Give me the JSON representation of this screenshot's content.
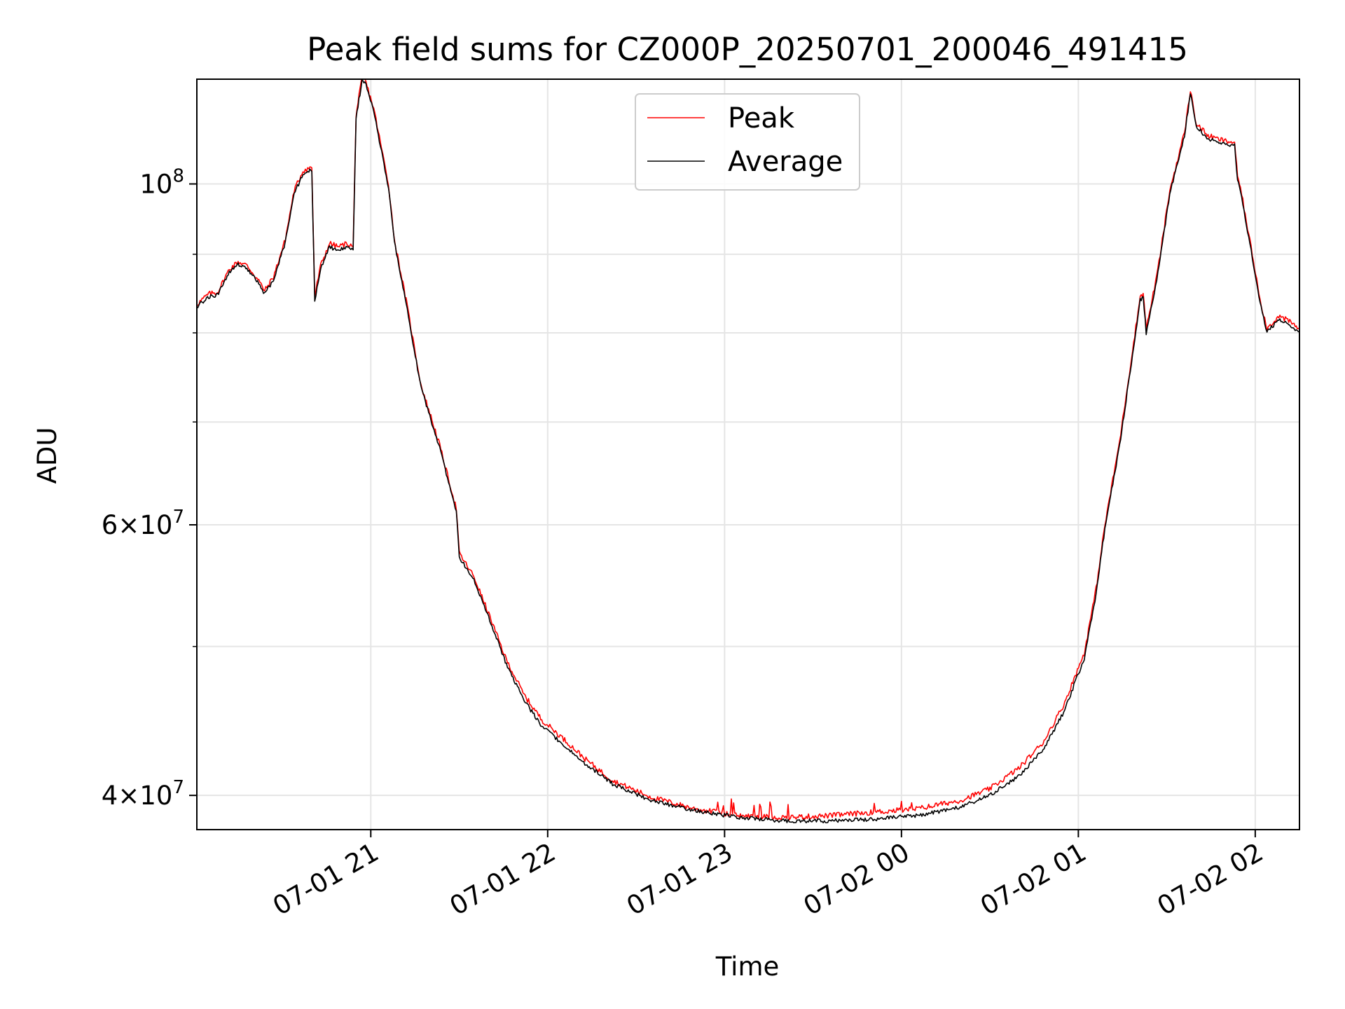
{
  "chart_data": {
    "type": "line",
    "title": "Peak field sums for CZ000P_20250701_200046_491415",
    "xlabel": "Time",
    "ylabel": "ADU",
    "x_range": [
      "2025-07-01 20:01",
      "2025-07-02 02:15"
    ],
    "ylim": [
      38000000,
      117000000
    ],
    "yscale": "log",
    "grid": true,
    "legend_position": "upper center",
    "x_ticks": [
      {
        "value": "2025-07-01 21:00",
        "label": "07-01 21"
      },
      {
        "value": "2025-07-01 22:00",
        "label": "07-01 22"
      },
      {
        "value": "2025-07-01 23:00",
        "label": "07-01 23"
      },
      {
        "value": "2025-07-02 00:00",
        "label": "07-02 00"
      },
      {
        "value": "2025-07-02 01:00",
        "label": "07-02 01"
      },
      {
        "value": "2025-07-02 02:00",
        "label": "07-02 02"
      }
    ],
    "y_major_ticks": [
      {
        "value": 40000000,
        "label_mantissa": "4",
        "label_exponent": "7"
      },
      {
        "value": 60000000,
        "label_mantissa": "6",
        "label_exponent": "7"
      },
      {
        "value": 100000000,
        "label_mantissa": "",
        "label_exponent": "8"
      }
    ],
    "y_minor_grid": [
      50000000,
      70000000,
      80000000,
      90000000
    ],
    "series": [
      {
        "name": "Peak",
        "color": "#ff0000",
        "noise": 0.004,
        "points": [
          [
            "2025-07-01 20:01",
            83500000
          ],
          [
            "2025-07-01 20:05",
            84800000
          ],
          [
            "2025-07-01 20:08",
            85000000
          ],
          [
            "2025-07-01 20:12",
            88000000
          ],
          [
            "2025-07-01 20:15",
            89000000
          ],
          [
            "2025-07-01 20:18",
            88500000
          ],
          [
            "2025-07-01 20:22",
            86500000
          ],
          [
            "2025-07-01 20:24",
            85200000
          ],
          [
            "2025-07-01 20:27",
            87000000
          ],
          [
            "2025-07-01 20:31",
            92000000
          ],
          [
            "2025-07-01 20:34",
            99000000
          ],
          [
            "2025-07-01 20:37",
            102000000
          ],
          [
            "2025-07-01 20:39",
            102400000
          ],
          [
            "2025-07-01 20:40",
            102500000
          ],
          [
            "2025-07-01 20:41",
            84500000
          ],
          [
            "2025-07-01 20:43",
            88500000
          ],
          [
            "2025-07-01 20:46",
            91500000
          ],
          [
            "2025-07-01 20:49",
            91000000
          ],
          [
            "2025-07-01 20:52",
            91500000
          ],
          [
            "2025-07-01 20:54",
            91000000
          ],
          [
            "2025-07-01 20:55",
            111000000
          ],
          [
            "2025-07-01 20:56",
            114000000
          ],
          [
            "2025-07-01 20:57",
            117000000
          ],
          [
            "2025-07-01 20:58",
            117000000
          ],
          [
            "2025-07-01 21:01",
            112000000
          ],
          [
            "2025-07-01 21:06",
            100000000
          ],
          [
            "2025-07-01 21:08",
            92000000
          ],
          [
            "2025-07-01 21:12",
            84000000
          ],
          [
            "2025-07-01 21:17",
            74000000
          ],
          [
            "2025-07-01 21:23",
            68000000
          ],
          [
            "2025-07-01 21:29",
            61500000
          ],
          [
            "2025-07-01 21:30",
            57500000
          ],
          [
            "2025-07-01 21:35",
            55500000
          ],
          [
            "2025-07-01 21:40",
            52500000
          ],
          [
            "2025-07-01 21:46",
            49000000
          ],
          [
            "2025-07-01 21:52",
            46500000
          ],
          [
            "2025-07-01 21:58",
            44800000
          ],
          [
            "2025-07-01 22:05",
            43600000
          ],
          [
            "2025-07-01 22:13",
            42200000
          ],
          [
            "2025-07-01 22:22",
            40900000
          ],
          [
            "2025-07-01 22:35",
            39900000
          ],
          [
            "2025-07-01 22:50",
            39200000
          ],
          [
            "2025-07-01 23:05",
            38800000
          ],
          [
            "2025-07-01 23:20",
            38700000
          ],
          [
            "2025-07-01 23:35",
            38800000
          ],
          [
            "2025-07-01 23:50",
            39000000
          ],
          [
            "2025-07-02 00:05",
            39200000
          ],
          [
            "2025-07-02 00:20",
            39700000
          ],
          [
            "2025-07-02 00:30",
            40400000
          ],
          [
            "2025-07-02 00:40",
            41700000
          ],
          [
            "2025-07-02 00:48",
            43300000
          ],
          [
            "2025-07-02 00:55",
            45800000
          ],
          [
            "2025-07-02 01:02",
            49500000
          ],
          [
            "2025-07-02 01:06",
            54500000
          ],
          [
            "2025-07-02 01:09",
            60000000
          ],
          [
            "2025-07-02 01:14",
            68000000
          ],
          [
            "2025-07-02 01:18",
            77000000
          ],
          [
            "2025-07-02 01:21",
            84500000
          ],
          [
            "2025-07-02 01:22",
            85000000
          ],
          [
            "2025-07-02 01:23",
            80500000
          ],
          [
            "2025-07-02 01:25",
            84000000
          ],
          [
            "2025-07-02 01:27",
            88000000
          ],
          [
            "2025-07-02 01:31",
            99000000
          ],
          [
            "2025-07-02 01:36",
            108000000
          ],
          [
            "2025-07-02 01:38",
            115000000
          ],
          [
            "2025-07-02 01:40",
            109500000
          ],
          [
            "2025-07-02 01:44",
            107500000
          ],
          [
            "2025-07-02 01:47",
            107000000
          ],
          [
            "2025-07-02 01:51",
            106500000
          ],
          [
            "2025-07-02 01:53",
            106500000
          ],
          [
            "2025-07-02 01:54",
            101000000
          ],
          [
            "2025-07-02 01:55",
            99500000
          ],
          [
            "2025-07-02 01:57",
            94500000
          ],
          [
            "2025-07-02 01:59",
            90000000
          ],
          [
            "2025-07-02 02:02",
            83500000
          ],
          [
            "2025-07-02 02:04",
            80500000
          ],
          [
            "2025-07-02 02:08",
            82000000
          ],
          [
            "2025-07-02 02:11",
            81500000
          ],
          [
            "2025-07-02 02:15",
            80500000
          ]
        ]
      },
      {
        "name": "Average",
        "color": "#000000",
        "noise": 0.003,
        "points": [
          [
            "2025-07-01 20:01",
            83200000
          ],
          [
            "2025-07-01 20:05",
            84400000
          ],
          [
            "2025-07-01 20:08",
            84700000
          ],
          [
            "2025-07-01 20:12",
            87600000
          ],
          [
            "2025-07-01 20:15",
            88600000
          ],
          [
            "2025-07-01 20:18",
            88100000
          ],
          [
            "2025-07-01 20:22",
            86100000
          ],
          [
            "2025-07-01 20:24",
            84800000
          ],
          [
            "2025-07-01 20:27",
            86600000
          ],
          [
            "2025-07-01 20:31",
            91600000
          ],
          [
            "2025-07-01 20:34",
            98500000
          ],
          [
            "2025-07-01 20:37",
            101500000
          ],
          [
            "2025-07-01 20:39",
            102000000
          ],
          [
            "2025-07-01 20:40",
            102000000
          ],
          [
            "2025-07-01 20:41",
            84000000
          ],
          [
            "2025-07-01 20:43",
            88000000
          ],
          [
            "2025-07-01 20:46",
            91000000
          ],
          [
            "2025-07-01 20:49",
            90500000
          ],
          [
            "2025-07-01 20:52",
            91000000
          ],
          [
            "2025-07-01 20:54",
            90500000
          ],
          [
            "2025-07-01 20:55",
            110500000
          ],
          [
            "2025-07-01 20:56",
            113500000
          ],
          [
            "2025-07-01 20:57",
            116500000
          ],
          [
            "2025-07-01 20:58",
            116500000
          ],
          [
            "2025-07-01 21:01",
            111500000
          ],
          [
            "2025-07-01 21:06",
            99500000
          ],
          [
            "2025-07-01 21:08",
            91600000
          ],
          [
            "2025-07-01 21:12",
            83600000
          ],
          [
            "2025-07-01 21:17",
            73700000
          ],
          [
            "2025-07-01 21:23",
            67700000
          ],
          [
            "2025-07-01 21:29",
            61200000
          ],
          [
            "2025-07-01 21:30",
            57200000
          ],
          [
            "2025-07-01 21:35",
            55200000
          ],
          [
            "2025-07-01 21:40",
            52200000
          ],
          [
            "2025-07-01 21:46",
            48700000
          ],
          [
            "2025-07-01 21:52",
            46100000
          ],
          [
            "2025-07-01 21:58",
            44400000
          ],
          [
            "2025-07-01 22:05",
            43200000
          ],
          [
            "2025-07-01 22:13",
            41900000
          ],
          [
            "2025-07-01 22:22",
            40700000
          ],
          [
            "2025-07-01 22:35",
            39700000
          ],
          [
            "2025-07-01 22:50",
            39100000
          ],
          [
            "2025-07-01 23:05",
            38700000
          ],
          [
            "2025-07-01 23:20",
            38500000
          ],
          [
            "2025-07-01 23:35",
            38500000
          ],
          [
            "2025-07-01 23:50",
            38600000
          ],
          [
            "2025-07-02 00:05",
            38800000
          ],
          [
            "2025-07-02 00:20",
            39300000
          ],
          [
            "2025-07-02 00:30",
            40000000
          ],
          [
            "2025-07-02 00:40",
            41200000
          ],
          [
            "2025-07-02 00:48",
            42800000
          ],
          [
            "2025-07-02 00:55",
            45300000
          ],
          [
            "2025-07-02 01:02",
            49100000
          ],
          [
            "2025-07-02 01:06",
            54100000
          ],
          [
            "2025-07-02 01:09",
            59700000
          ],
          [
            "2025-07-02 01:14",
            67600000
          ],
          [
            "2025-07-02 01:18",
            76500000
          ],
          [
            "2025-07-02 01:21",
            84000000
          ],
          [
            "2025-07-02 01:22",
            84500000
          ],
          [
            "2025-07-02 01:23",
            80000000
          ],
          [
            "2025-07-02 01:25",
            83500000
          ],
          [
            "2025-07-02 01:27",
            87500000
          ],
          [
            "2025-07-02 01:31",
            98500000
          ],
          [
            "2025-07-02 01:36",
            107500000
          ],
          [
            "2025-07-02 01:38",
            114500000
          ],
          [
            "2025-07-02 01:40",
            109000000
          ],
          [
            "2025-07-02 01:44",
            107000000
          ],
          [
            "2025-07-02 01:47",
            106500000
          ],
          [
            "2025-07-02 01:51",
            106000000
          ],
          [
            "2025-07-02 01:53",
            106000000
          ],
          [
            "2025-07-02 01:54",
            100500000
          ],
          [
            "2025-07-02 01:55",
            99000000
          ],
          [
            "2025-07-02 01:57",
            94000000
          ],
          [
            "2025-07-02 01:59",
            89600000
          ],
          [
            "2025-07-02 02:02",
            83100000
          ],
          [
            "2025-07-02 02:04",
            80100000
          ],
          [
            "2025-07-02 02:08",
            81600000
          ],
          [
            "2025-07-02 02:11",
            81100000
          ],
          [
            "2025-07-02 02:15",
            80100000
          ]
        ]
      }
    ]
  }
}
